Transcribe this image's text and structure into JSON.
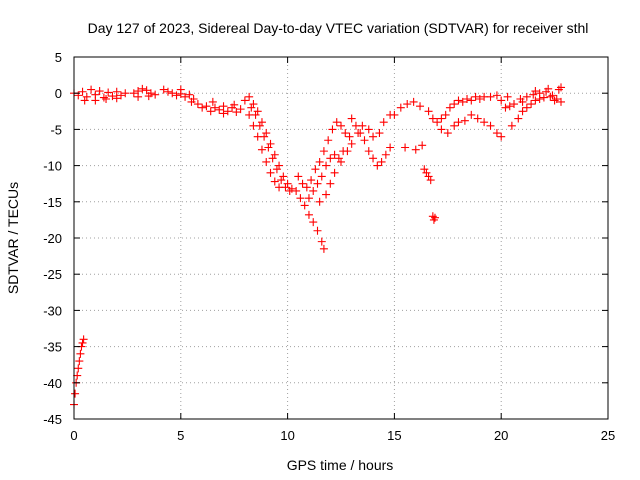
{
  "chart_data": {
    "type": "scatter",
    "title": "Day 127 of 2023, Sidereal Day-to-day VTEC variation (SDTVAR) for receiver sthl",
    "xlabel": "GPS time / hours",
    "ylabel": "SDTVAR / TECUs",
    "xlim": [
      0,
      25
    ],
    "ylim": [
      -45,
      5
    ],
    "xticks": [
      0,
      5,
      10,
      15,
      20,
      25
    ],
    "yticks": [
      5,
      0,
      -5,
      -10,
      -15,
      -20,
      -25,
      -30,
      -35,
      -40,
      -45
    ],
    "grid": true,
    "marker": "plus",
    "color": "#ff0000",
    "series": [
      {
        "name": "SDTVAR",
        "points": [
          [
            0.0,
            -43.0
          ],
          [
            0.05,
            -41.5
          ],
          [
            0.1,
            -40.0
          ],
          [
            0.15,
            -39.0
          ],
          [
            0.2,
            -38.0
          ],
          [
            0.25,
            -37.0
          ],
          [
            0.3,
            -36.0
          ],
          [
            0.35,
            -35.0
          ],
          [
            0.4,
            -34.5
          ],
          [
            0.45,
            -34.0
          ],
          [
            0.0,
            0.0
          ],
          [
            0.2,
            -0.3
          ],
          [
            0.4,
            0.2
          ],
          [
            0.6,
            -0.5
          ],
          [
            0.8,
            0.5
          ],
          [
            1.0,
            -0.2
          ],
          [
            1.2,
            0.3
          ],
          [
            1.4,
            -0.6
          ],
          [
            1.6,
            0.1
          ],
          [
            1.8,
            -0.4
          ],
          [
            2.0,
            0.2
          ],
          [
            2.2,
            -0.3
          ],
          [
            2.4,
            0.0
          ],
          [
            0.5,
            -1.0
          ],
          [
            1.0,
            -1.0
          ],
          [
            1.5,
            -0.8
          ],
          [
            2.0,
            -0.7
          ],
          [
            2.8,
            0.0
          ],
          [
            3.0,
            0.3
          ],
          [
            3.2,
            0.6
          ],
          [
            3.4,
            0.4
          ],
          [
            3.6,
            0.0
          ],
          [
            3.8,
            -0.2
          ],
          [
            3.0,
            -0.5
          ],
          [
            3.5,
            -0.4
          ],
          [
            4.2,
            0.5
          ],
          [
            4.4,
            0.2
          ],
          [
            4.6,
            0.0
          ],
          [
            4.8,
            -0.3
          ],
          [
            5.0,
            -0.1
          ],
          [
            5.2,
            -0.5
          ],
          [
            5.4,
            -0.2
          ],
          [
            5.6,
            -0.8
          ],
          [
            5.0,
            0.5
          ],
          [
            5.5,
            -1.2
          ],
          [
            5.8,
            -1.5
          ],
          [
            6.0,
            -2.0
          ],
          [
            6.2,
            -1.8
          ],
          [
            6.4,
            -2.5
          ],
          [
            6.6,
            -2.0
          ],
          [
            6.8,
            -2.3
          ],
          [
            7.0,
            -1.8
          ],
          [
            7.2,
            -2.5
          ],
          [
            7.4,
            -2.0
          ],
          [
            7.6,
            -2.6
          ],
          [
            7.8,
            -2.2
          ],
          [
            6.5,
            -1.2
          ],
          [
            7.0,
            -2.8
          ],
          [
            7.5,
            -1.6
          ],
          [
            8.0,
            -1.0
          ],
          [
            8.2,
            -0.5
          ],
          [
            8.4,
            -1.5
          ],
          [
            8.6,
            -2.5
          ],
          [
            8.8,
            -4.0
          ],
          [
            9.0,
            -5.5
          ],
          [
            9.2,
            -7.0
          ],
          [
            9.4,
            -8.5
          ],
          [
            9.6,
            -10.0
          ],
          [
            9.8,
            -11.5
          ],
          [
            10.0,
            -12.5
          ],
          [
            10.2,
            -13.2
          ],
          [
            8.3,
            -2.0
          ],
          [
            8.5,
            -3.0
          ],
          [
            8.7,
            -4.5
          ],
          [
            8.9,
            -6.0
          ],
          [
            9.1,
            -7.5
          ],
          [
            9.3,
            -9.0
          ],
          [
            9.5,
            -10.5
          ],
          [
            9.7,
            -12.0
          ],
          [
            9.9,
            -13.0
          ],
          [
            10.1,
            -13.5
          ],
          [
            8.2,
            -3.0
          ],
          [
            8.4,
            -4.5
          ],
          [
            8.6,
            -6.0
          ],
          [
            8.8,
            -7.8
          ],
          [
            9.0,
            -9.5
          ],
          [
            9.2,
            -11.0
          ],
          [
            9.4,
            -12.2
          ],
          [
            9.6,
            -13.0
          ],
          [
            10.4,
            -13.5
          ],
          [
            10.6,
            -14.5
          ],
          [
            10.8,
            -15.5
          ],
          [
            11.0,
            -16.8
          ],
          [
            11.2,
            -17.8
          ],
          [
            11.4,
            -19.0
          ],
          [
            11.6,
            -20.5
          ],
          [
            11.7,
            -21.5
          ],
          [
            10.5,
            -11.5
          ],
          [
            10.7,
            -12.5
          ],
          [
            10.9,
            -13.0
          ],
          [
            11.1,
            -12.0
          ],
          [
            11.3,
            -10.5
          ],
          [
            11.5,
            -9.5
          ],
          [
            11.7,
            -8.0
          ],
          [
            11.9,
            -6.5
          ],
          [
            12.1,
            -5.0
          ],
          [
            12.3,
            -4.0
          ],
          [
            12.5,
            -4.5
          ],
          [
            12.7,
            -5.5
          ],
          [
            12.9,
            -6.0
          ],
          [
            11.0,
            -14.5
          ],
          [
            11.2,
            -13.5
          ],
          [
            11.4,
            -12.5
          ],
          [
            11.6,
            -11.5
          ],
          [
            11.8,
            -10.0
          ],
          [
            12.0,
            -9.0
          ],
          [
            12.2,
            -8.5
          ],
          [
            12.4,
            -9.0
          ],
          [
            12.6,
            -8.0
          ],
          [
            11.5,
            -15.0
          ],
          [
            11.8,
            -14.0
          ],
          [
            12.0,
            -12.5
          ],
          [
            12.2,
            -11.0
          ],
          [
            12.5,
            -9.5
          ],
          [
            12.8,
            -8.0
          ],
          [
            13.0,
            -7.0
          ],
          [
            13.3,
            -5.5
          ],
          [
            13.5,
            -4.5
          ],
          [
            13.8,
            -5.0
          ],
          [
            14.0,
            -6.0
          ],
          [
            14.3,
            -5.5
          ],
          [
            14.5,
            -4.0
          ],
          [
            14.8,
            -3.0
          ],
          [
            13.0,
            -3.5
          ],
          [
            13.2,
            -4.5
          ],
          [
            13.4,
            -5.5
          ],
          [
            13.6,
            -6.5
          ],
          [
            13.8,
            -8.0
          ],
          [
            14.0,
            -9.0
          ],
          [
            14.2,
            -10.0
          ],
          [
            14.4,
            -9.5
          ],
          [
            14.6,
            -8.5
          ],
          [
            14.8,
            -7.5
          ],
          [
            15.0,
            -3.0
          ],
          [
            15.3,
            -2.0
          ],
          [
            15.6,
            -1.5
          ],
          [
            15.9,
            -1.2
          ],
          [
            16.2,
            -1.8
          ],
          [
            15.5,
            -7.5
          ],
          [
            16.0,
            -7.8
          ],
          [
            16.3,
            -7.2
          ],
          [
            16.4,
            -10.5
          ],
          [
            16.5,
            -11.0
          ],
          [
            16.6,
            -11.5
          ],
          [
            16.7,
            -12.0
          ],
          [
            16.8,
            -17.0
          ],
          [
            16.85,
            -17.5
          ],
          [
            16.9,
            -17.2
          ],
          [
            16.6,
            -2.5
          ],
          [
            16.8,
            -3.5
          ],
          [
            17.0,
            -4.0
          ],
          [
            17.2,
            -3.5
          ],
          [
            17.4,
            -3.0
          ],
          [
            17.6,
            -2.0
          ],
          [
            17.8,
            -1.5
          ],
          [
            18.0,
            -1.0
          ],
          [
            18.2,
            -1.2
          ],
          [
            18.4,
            -0.8
          ],
          [
            18.6,
            -1.0
          ],
          [
            18.8,
            -0.5
          ],
          [
            19.0,
            -0.8
          ],
          [
            19.2,
            -0.5
          ],
          [
            17.2,
            -5.0
          ],
          [
            17.5,
            -5.5
          ],
          [
            17.8,
            -4.5
          ],
          [
            18.0,
            -4.0
          ],
          [
            18.3,
            -3.8
          ],
          [
            18.6,
            -3.0
          ],
          [
            18.9,
            -3.5
          ],
          [
            19.2,
            -4.0
          ],
          [
            19.5,
            -4.5
          ],
          [
            19.8,
            -5.5
          ],
          [
            20.0,
            -6.0
          ],
          [
            19.5,
            -0.5
          ],
          [
            19.8,
            -0.3
          ],
          [
            20.0,
            -1.0
          ],
          [
            20.3,
            -0.5
          ],
          [
            20.6,
            -1.5
          ],
          [
            20.9,
            -0.8
          ],
          [
            21.2,
            -0.5
          ],
          [
            21.5,
            -0.2
          ],
          [
            21.8,
            0.0
          ],
          [
            22.1,
            0.2
          ],
          [
            22.4,
            -0.3
          ],
          [
            22.7,
            0.5
          ],
          [
            20.5,
            -4.5
          ],
          [
            20.8,
            -3.5
          ],
          [
            21.0,
            -2.5
          ],
          [
            21.2,
            -2.0
          ],
          [
            21.4,
            -1.5
          ],
          [
            21.6,
            -1.0
          ],
          [
            21.8,
            -0.8
          ],
          [
            22.0,
            -0.6
          ],
          [
            22.3,
            -0.5
          ],
          [
            22.6,
            -0.8
          ],
          [
            22.8,
            -1.2
          ],
          [
            20.2,
            -2.0
          ],
          [
            20.4,
            -1.8
          ],
          [
            21.0,
            -1.2
          ],
          [
            21.6,
            0.3
          ],
          [
            22.2,
            0.6
          ],
          [
            22.8,
            0.8
          ],
          [
            22.5,
            -1.0
          ]
        ]
      }
    ]
  }
}
